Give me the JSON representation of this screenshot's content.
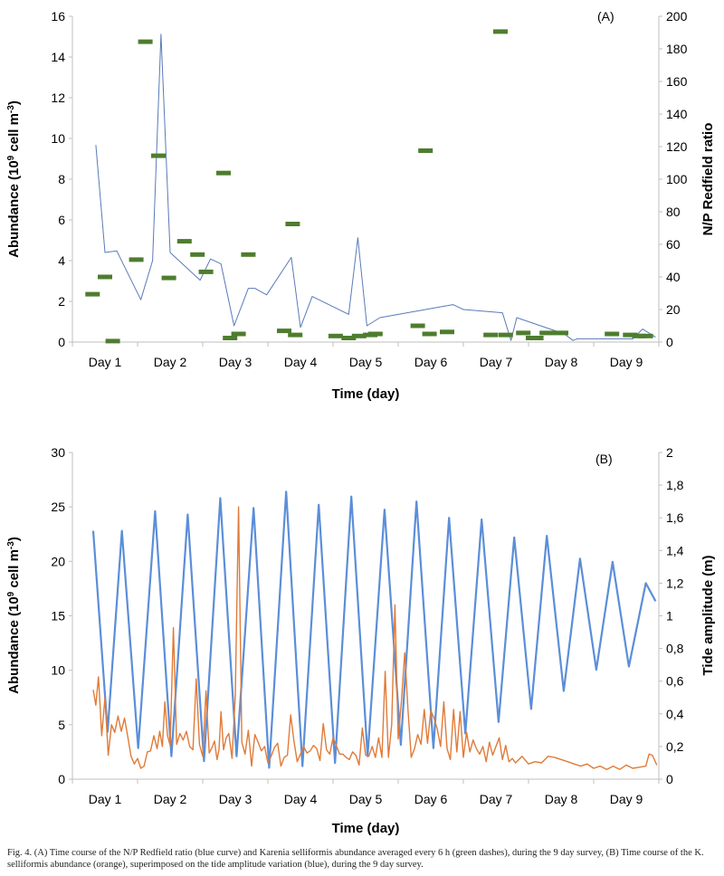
{
  "caption": "Fig. 4. (A) Time course of the N/P Redfield ratio (blue curve) and Karenia selliformis abundance averaged every 6 h (green dashes), during the 9 day survey, (B) Time course of the K. selliformis abundance (orange), superimposed on the tide amplitude variation (blue), during the 9 day survey.",
  "chart_data": [
    {
      "type": "line",
      "panel_label": "(A)",
      "xlabel": "Time (day)",
      "ylabel_left": "Abundance (10",
      "ylabel_left_sup1": "9",
      "ylabel_left_mid": " cell m",
      "ylabel_left_sup2": "-3",
      "ylabel_left_end": ")",
      "ylabel_right": "N/P Redfield ratio",
      "categories": [
        "Day 1",
        "Day 2",
        "Day 3",
        "Day 4",
        "Day 5",
        "Day 6",
        "Day 7",
        "Day 8",
        "Day 9"
      ],
      "x_range": [
        0.5,
        9.5
      ],
      "ylim_left": [
        0,
        16
      ],
      "yticks_left": [
        "0",
        "2",
        "4",
        "6",
        "8",
        "10",
        "12",
        "14",
        "16"
      ],
      "ylim_right": [
        0,
        200
      ],
      "yticks_right": [
        "0",
        "20",
        "40",
        "60",
        "80",
        "100",
        "120",
        "140",
        "160",
        "180",
        "200"
      ],
      "series": [
        {
          "kind": "line",
          "axis": "right",
          "color": "#5a7ab8",
          "x": [
            0.86,
            1.0,
            1.18,
            1.55,
            1.73,
            1.86,
            2.0,
            2.46,
            2.62,
            2.78,
            2.98,
            3.2,
            3.3,
            3.48,
            3.86,
            4.0,
            4.18,
            4.74,
            4.88,
            5.02,
            5.22,
            6.34,
            6.5,
            7.1,
            7.23,
            7.32,
            8.05,
            8.18,
            8.25,
            9.1,
            9.25,
            9.45
          ],
          "y": [
            121,
            55,
            56,
            26,
            50,
            189,
            55,
            38,
            51,
            48,
            10,
            33,
            33,
            29,
            52,
            9,
            28,
            17,
            64,
            10,
            15,
            23,
            20,
            18,
            1,
            15,
            5,
            1,
            2,
            2,
            8,
            3
          ]
        },
        {
          "kind": "dash",
          "axis": "left",
          "color": "#4e7d2e",
          "x": [
            0.81,
            1.0,
            1.12,
            1.48,
            1.62,
            1.82,
            1.98,
            2.22,
            2.42,
            2.55,
            2.82,
            2.92,
            3.05,
            3.2,
            3.75,
            3.88,
            3.92,
            4.54,
            4.74,
            4.9,
            5.07,
            5.15,
            5.8,
            5.92,
            5.98,
            6.25,
            6.92,
            7.07,
            7.15,
            7.42,
            7.57,
            7.62,
            7.78,
            8.0,
            8.78,
            9.06,
            9.2,
            9.3
          ],
          "y": [
            2.35,
            3.2,
            0.05,
            4.05,
            14.75,
            9.15,
            3.15,
            4.95,
            4.3,
            3.45,
            8.3,
            0.2,
            0.4,
            4.3,
            0.55,
            5.8,
            0.35,
            0.3,
            0.2,
            0.3,
            0.35,
            0.4,
            0.8,
            9.4,
            0.4,
            0.5,
            0.35,
            15.25,
            0.35,
            0.45,
            0.2,
            0.2,
            0.45,
            0.45,
            0.4,
            0.35,
            0.3,
            0.3
          ]
        }
      ]
    },
    {
      "type": "line",
      "panel_label": "(B)",
      "xlabel": "Time (day)",
      "ylabel_left": "Abundance (10",
      "ylabel_left_sup1": "9",
      "ylabel_left_mid": " cell m",
      "ylabel_left_sup2": "-3",
      "ylabel_left_end": ")",
      "ylabel_right": "Tide amplitude (m)",
      "categories": [
        "Day 1",
        "Day 2",
        "Day 3",
        "Day 4",
        "Day 5",
        "Day 6",
        "Day 7",
        "Day 8",
        "Day 9"
      ],
      "x_range": [
        0.5,
        9.5
      ],
      "ylim_left": [
        0,
        30
      ],
      "yticks_left": [
        "0",
        "5",
        "10",
        "15",
        "20",
        "25",
        "30"
      ],
      "ylim_right": [
        0,
        2
      ],
      "yticks_right": [
        "0",
        "0,2",
        "0,4",
        "0,6",
        "0,8",
        "1",
        "1,2",
        "1,4",
        "1,6",
        "1,8",
        "2"
      ],
      "series": [
        {
          "kind": "line",
          "axis": "right",
          "color": "#5b8ed8",
          "x": [
            0.82,
            1.04,
            1.26,
            1.51,
            1.77,
            2.02,
            2.27,
            2.52,
            2.77,
            3.02,
            3.28,
            3.52,
            3.78,
            4.03,
            4.28,
            4.53,
            4.78,
            5.03,
            5.29,
            5.54,
            5.78,
            6.04,
            6.28,
            6.53,
            6.78,
            7.04,
            7.28,
            7.54,
            7.78,
            8.04,
            8.29,
            8.54,
            8.79,
            9.04,
            9.3,
            9.45
          ],
          "y": [
            1.52,
            0.29,
            1.52,
            0.19,
            1.64,
            0.14,
            1.62,
            0.11,
            1.72,
            0.14,
            1.66,
            0.07,
            1.76,
            0.08,
            1.68,
            0.1,
            1.73,
            0.14,
            1.65,
            0.21,
            1.7,
            0.19,
            1.6,
            0.28,
            1.59,
            0.35,
            1.48,
            0.43,
            1.49,
            0.54,
            1.35,
            0.67,
            1.33,
            0.69,
            1.2,
            1.09
          ]
        },
        {
          "kind": "line",
          "axis": "left",
          "color": "#e07b39",
          "x": [
            0.82,
            0.86,
            0.9,
            0.95,
            1.0,
            1.05,
            1.1,
            1.15,
            1.2,
            1.25,
            1.3,
            1.35,
            1.4,
            1.45,
            1.5,
            1.55,
            1.6,
            1.65,
            1.7,
            1.75,
            1.8,
            1.84,
            1.88,
            1.92,
            1.96,
            2.0,
            2.05,
            2.1,
            2.15,
            2.2,
            2.25,
            2.3,
            2.35,
            2.4,
            2.45,
            2.5,
            2.55,
            2.6,
            2.65,
            2.68,
            2.72,
            2.75,
            2.78,
            2.82,
            2.86,
            2.9,
            2.95,
            3.0,
            3.05,
            3.1,
            3.15,
            3.2,
            3.25,
            3.3,
            3.35,
            3.4,
            3.45,
            3.5,
            3.55,
            3.6,
            3.65,
            3.7,
            3.75,
            3.8,
            3.85,
            3.9,
            3.95,
            4.0,
            4.05,
            4.1,
            4.15,
            4.2,
            4.25,
            4.3,
            4.35,
            4.4,
            4.45,
            4.5,
            4.55,
            4.6,
            4.65,
            4.7,
            4.75,
            4.8,
            4.85,
            4.9,
            4.95,
            5.0,
            5.05,
            5.1,
            5.15,
            5.2,
            5.25,
            5.3,
            5.35,
            5.4,
            5.45,
            5.5,
            5.55,
            5.6,
            5.65,
            5.7,
            5.75,
            5.8,
            5.85,
            5.9,
            5.95,
            6.0,
            6.05,
            6.1,
            6.15,
            6.2,
            6.25,
            6.3,
            6.35,
            6.4,
            6.45,
            6.5,
            6.55,
            6.6,
            6.65,
            6.7,
            6.75,
            6.8,
            6.85,
            6.9,
            6.95,
            7.0,
            7.05,
            7.1,
            7.15,
            7.2,
            7.25,
            7.3,
            7.4,
            7.5,
            7.6,
            7.7,
            7.8,
            7.9,
            8.0,
            8.1,
            8.2,
            8.3,
            8.4,
            8.5,
            8.6,
            8.7,
            8.8,
            8.9,
            9.0,
            9.1,
            9.2,
            9.3,
            9.35,
            9.4,
            9.47
          ],
          "y": [
            8.2,
            6.8,
            9.4,
            4.0,
            7.5,
            2.2,
            5.0,
            4.3,
            5.8,
            4.4,
            5.6,
            3.9,
            2.1,
            1.4,
            1.9,
            1.0,
            1.2,
            2.5,
            2.6,
            4.0,
            2.8,
            4.4,
            3.0,
            7.1,
            4.0,
            3.1,
            13.9,
            3.2,
            4.2,
            3.6,
            4.4,
            3.0,
            2.7,
            9.2,
            3.2,
            2.1,
            8.1,
            2.4,
            3.0,
            3.5,
            1.8,
            2.7,
            6.2,
            2.7,
            3.8,
            4.2,
            1.9,
            7.7,
            25.0,
            3.4,
            2.3,
            4.5,
            1.2,
            4.1,
            3.4,
            2.6,
            3.0,
            1.5,
            2.1,
            2.9,
            3.3,
            1.2,
            2.0,
            2.2,
            5.9,
            3.5,
            1.6,
            2.3,
            3.0,
            2.4,
            2.6,
            3.1,
            2.8,
            1.7,
            5.1,
            2.7,
            2.3,
            3.8,
            3.1,
            2.3,
            2.3,
            2.0,
            1.8,
            2.5,
            2.2,
            1.3,
            4.7,
            2.2,
            2.1,
            3.0,
            2.0,
            3.8,
            2.0,
            9.9,
            2.0,
            5.0,
            16.0,
            3.7,
            7.2,
            11.6,
            6.4,
            2.0,
            2.8,
            4.1,
            3.2,
            6.4,
            3.3,
            6.3,
            5.6,
            4.6,
            3.0,
            7.1,
            2.8,
            1.8,
            6.4,
            2.5,
            6.2,
            2.0,
            4.3,
            2.5,
            3.6,
            2.8,
            2.3,
            3.0,
            1.6,
            3.4,
            2.2,
            3.0,
            3.8,
            1.8,
            3.1,
            1.6,
            1.9,
            1.5,
            2.1,
            1.4,
            1.6,
            1.5,
            2.1,
            2.0,
            1.8,
            1.6,
            1.4,
            1.2,
            1.4,
            1.0,
            1.2,
            0.9,
            1.2,
            0.9,
            1.3,
            1.0,
            1.1,
            1.2,
            2.3,
            2.2,
            1.3
          ]
        }
      ]
    }
  ]
}
